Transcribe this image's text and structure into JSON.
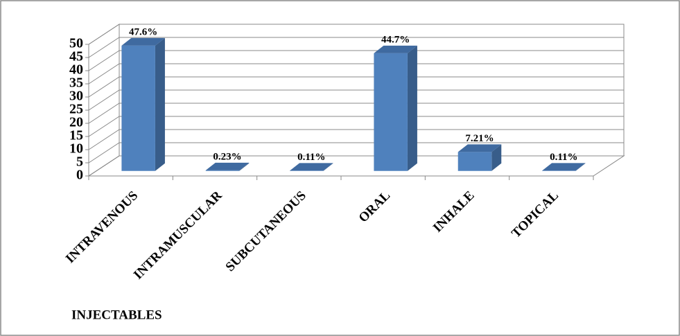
{
  "chart_data": {
    "type": "bar3d",
    "categories": [
      "INTRAVENOUS",
      "INTRAMUSCULAR",
      "SUBCUTANEOUS",
      "ORAL",
      "INHALE",
      "TOPICAL"
    ],
    "values": [
      47.6,
      0.23,
      0.11,
      44.7,
      7.21,
      0.11
    ],
    "value_labels": [
      "47.6%",
      "0.23%",
      "0.11%",
      "44.7%",
      "7.21%",
      "0.11%"
    ],
    "color": "#4f81bd",
    "ylim": [
      0,
      50
    ],
    "yticks": [
      0,
      5,
      10,
      15,
      20,
      25,
      30,
      35,
      40,
      45,
      50
    ],
    "grid": true,
    "annotation": "INJECTABLES"
  }
}
